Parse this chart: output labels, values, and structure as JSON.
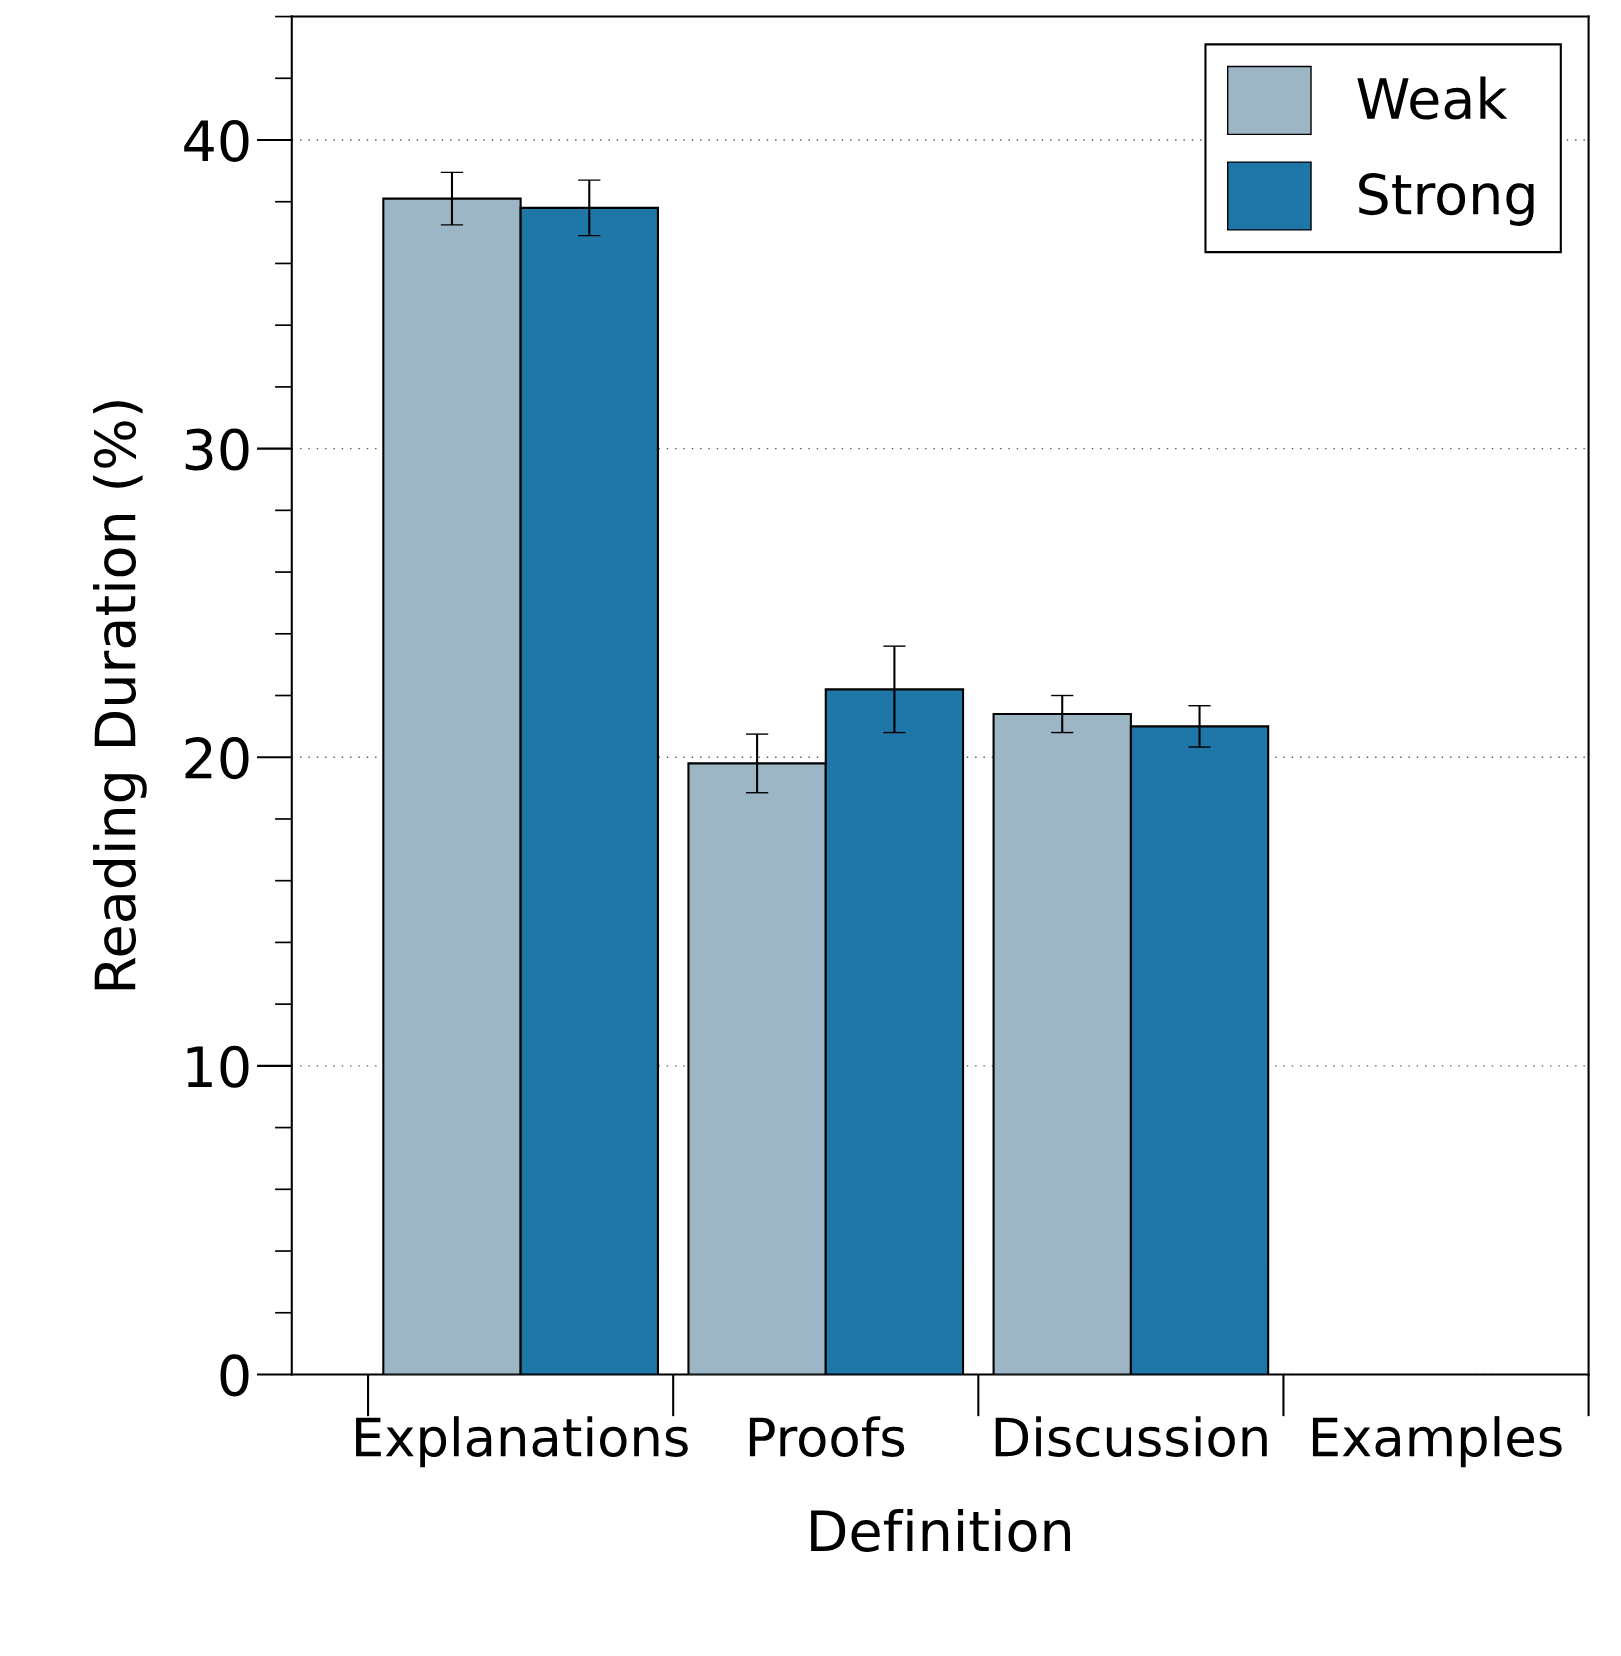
{
  "chart_data": {
    "type": "bar",
    "xlabel": "Definition",
    "ylabel": "Reading Duration (%)",
    "categories": [
      "Explanations",
      "Proofs",
      "Discussion",
      "Examples"
    ],
    "series": [
      {
        "name": "Weak",
        "color": "#9db6c5",
        "values": [
          38.1,
          19.8,
          21.4,
          null
        ],
        "errors": [
          0.85,
          0.95,
          0.6,
          null
        ]
      },
      {
        "name": "Strong",
        "color": "#1f77a8",
        "values": [
          37.8,
          22.2,
          21.0,
          null
        ],
        "errors": [
          0.9,
          1.4,
          0.67,
          null
        ]
      }
    ],
    "ylim": [
      0,
      44
    ],
    "yticks": [
      0,
      10,
      20,
      30,
      40
    ],
    "grid": "y",
    "legend": "top right"
  }
}
